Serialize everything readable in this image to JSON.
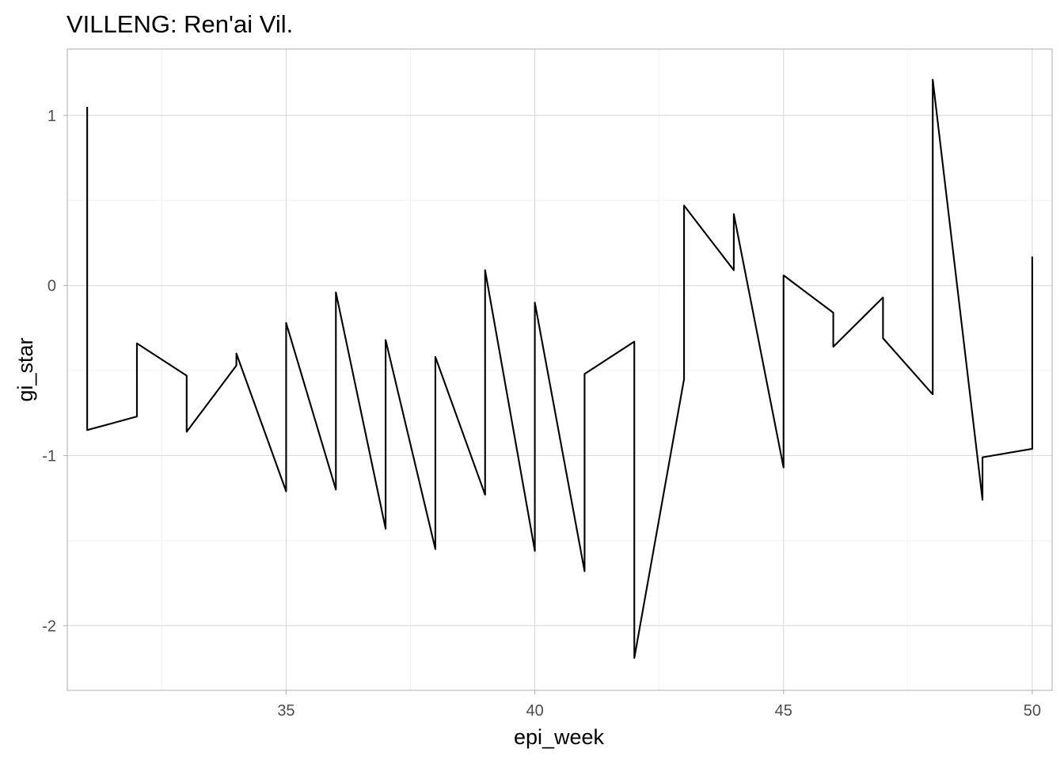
{
  "chart_data": {
    "type": "line",
    "title": "VILLENG: Ren'ai Vil.",
    "xlabel": "epi_week",
    "ylabel": "gi_star",
    "xlim": [
      30.6,
      50.4
    ],
    "ylim": [
      -2.38,
      1.39
    ],
    "x_ticks": [
      35,
      40,
      45,
      50
    ],
    "x_tick_labels": [
      "35",
      "40",
      "45",
      "50"
    ],
    "y_ticks": [
      -2,
      -1,
      0,
      1
    ],
    "y_tick_labels": [
      "-2",
      "-1",
      "0",
      "1"
    ],
    "grid": true,
    "series": [
      {
        "color": "#000000",
        "x": [
          31,
          31,
          32,
          32,
          33,
          33,
          34,
          34,
          35,
          35,
          36,
          36,
          37,
          37,
          38,
          38,
          39,
          39,
          40,
          40,
          41,
          41,
          42,
          42,
          43,
          43,
          44,
          44,
          45,
          45,
          46,
          46,
          47,
          47,
          48,
          48,
          49,
          49,
          50,
          50
        ],
        "y": [
          1.05,
          -0.85,
          -0.77,
          -0.34,
          -0.53,
          -0.86,
          -0.47,
          -0.4,
          -1.21,
          -0.22,
          -1.2,
          -0.04,
          -1.43,
          -0.32,
          -1.55,
          -0.42,
          -1.23,
          0.09,
          -1.56,
          -0.1,
          -1.68,
          -0.52,
          -0.33,
          -2.19,
          -0.55,
          0.47,
          0.09,
          0.42,
          -1.07,
          0.06,
          -0.16,
          -0.36,
          -0.07,
          -0.31,
          -0.64,
          1.21,
          -1.26,
          -1.01,
          -0.96,
          0.17
        ]
      }
    ]
  }
}
